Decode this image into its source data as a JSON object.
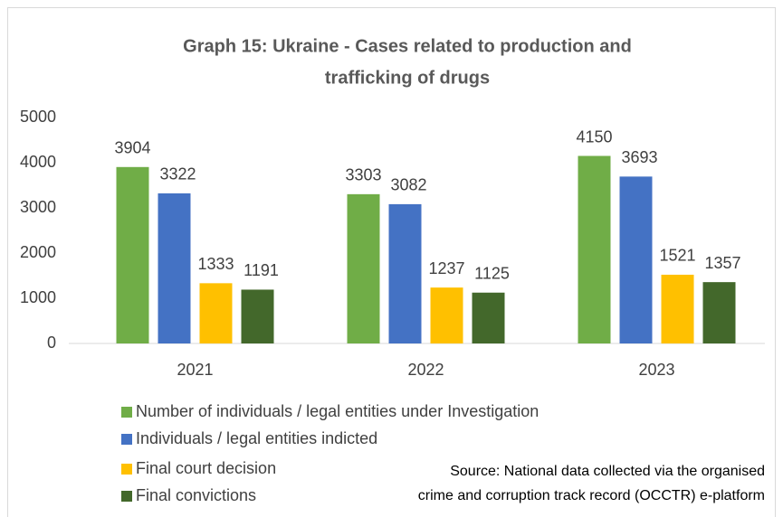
{
  "chart_data": {
    "type": "bar",
    "title": [
      "Graph 15: Ukraine - Cases related to production and",
      "trafficking of drugs"
    ],
    "categories": [
      "2021",
      "2022",
      "2023"
    ],
    "series": [
      {
        "name": "Number of individuals / legal entities under Investigation",
        "color": "#70ad47",
        "values": [
          3904,
          3303,
          4150
        ]
      },
      {
        "name": "Individuals / legal entities indicted",
        "color": "#4472c4",
        "values": [
          3322,
          3082,
          3693
        ]
      },
      {
        "name": "Final court decision",
        "color": "#ffc000",
        "values": [
          1333,
          1237,
          1521
        ]
      },
      {
        "name": "Final convictions",
        "color": "#43682b",
        "values": [
          1191,
          1125,
          1357
        ]
      }
    ],
    "ylim": [
      0,
      5000
    ],
    "yticks": [
      0,
      1000,
      2000,
      3000,
      4000,
      5000
    ],
    "grid": false,
    "legend": "bottom-left",
    "source": [
      "Source: National data collected via the organised",
      "crime and corruption track record (OCCTR) e-platform"
    ]
  }
}
